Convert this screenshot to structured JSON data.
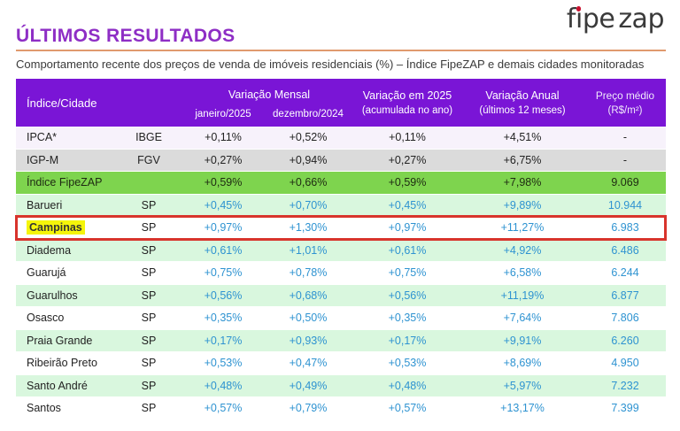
{
  "page": {
    "title": "ÚLTIMOS RESULTADOS",
    "subtitle": "Comportamento recente dos preços de venda de imóveis residenciais (%) – Índice FipeZAP e demais cidades monitoradas"
  },
  "logo": {
    "fi": "fı",
    "pe": "pe",
    "zap": "zap",
    "dot_color": "#C8102E"
  },
  "colors": {
    "title_purple": "#8E2EC5",
    "header_purple": "#7A15D6",
    "rule_orange": "#E09A6E",
    "index_row_green": "#7ED44E",
    "city_row_green": "#D9F7DE",
    "value_blue": "#2E93D1",
    "highlight_border_red": "#D8342C",
    "highlight_yellow": "#F5F50A",
    "row_lavender": "#F7F2FB",
    "row_gray": "#DBDBDB"
  },
  "chart_data": {
    "type": "table",
    "title": "ÚLTIMOS RESULTADOS",
    "header": {
      "index_city": "Índice/Cidade",
      "monthly_group": "Variação Mensal",
      "monthly_sub_1": "janeiro/2025",
      "monthly_sub_2": "dezembro/2024",
      "ytd_1": "Variação em 2025",
      "ytd_2": "(acumulada no ano)",
      "annual_1": "Variação Anual",
      "annual_2": "(últimos 12 meses)",
      "price_1": "Preço médio",
      "price_2": "(R$/m²)"
    },
    "rows": [
      {
        "name": "IPCA*",
        "source": "IBGE",
        "values": [
          "+0,11%",
          "+0,52%",
          "+0,11%",
          "+4,51%",
          "-"
        ],
        "style": "lavender",
        "name_highlight": false
      },
      {
        "name": "IGP-M",
        "source": "FGV",
        "values": [
          "+0,27%",
          "+0,94%",
          "+0,27%",
          "+6,75%",
          "-"
        ],
        "style": "gray",
        "name_highlight": false
      },
      {
        "name": "Índice FipeZAP",
        "source": "",
        "values": [
          "+0,59%",
          "+0,66%",
          "+0,59%",
          "+7,98%",
          "9.069"
        ],
        "style": "index",
        "name_highlight": false
      },
      {
        "name": "Barueri",
        "source": "SP",
        "values": [
          "+0,45%",
          "+0,70%",
          "+0,45%",
          "+9,89%",
          "10.944"
        ],
        "style": "green",
        "name_highlight": false
      },
      {
        "name": "Campinas",
        "source": "SP",
        "values": [
          "+0,97%",
          "+1,30%",
          "+0,97%",
          "+11,27%",
          "6.983"
        ],
        "style": "highlight",
        "name_highlight": true
      },
      {
        "name": "Diadema",
        "source": "SP",
        "values": [
          "+0,61%",
          "+1,01%",
          "+0,61%",
          "+4,92%",
          "6.486"
        ],
        "style": "green",
        "name_highlight": false
      },
      {
        "name": "Guarujá",
        "source": "SP",
        "values": [
          "+0,75%",
          "+0,78%",
          "+0,75%",
          "+6,58%",
          "6.244"
        ],
        "style": "white",
        "name_highlight": false
      },
      {
        "name": "Guarulhos",
        "source": "SP",
        "values": [
          "+0,56%",
          "+0,68%",
          "+0,56%",
          "+11,19%",
          "6.877"
        ],
        "style": "green",
        "name_highlight": false
      },
      {
        "name": "Osasco",
        "source": "SP",
        "values": [
          "+0,35%",
          "+0,50%",
          "+0,35%",
          "+7,64%",
          "7.806"
        ],
        "style": "white",
        "name_highlight": false
      },
      {
        "name": "Praia Grande",
        "source": "SP",
        "values": [
          "+0,17%",
          "+0,93%",
          "+0,17%",
          "+9,91%",
          "6.260"
        ],
        "style": "green",
        "name_highlight": false
      },
      {
        "name": "Ribeirão Preto",
        "source": "SP",
        "values": [
          "+0,53%",
          "+0,47%",
          "+0,53%",
          "+8,69%",
          "4.950"
        ],
        "style": "white",
        "name_highlight": false
      },
      {
        "name": "Santo André",
        "source": "SP",
        "values": [
          "+0,48%",
          "+0,49%",
          "+0,48%",
          "+5,97%",
          "7.232"
        ],
        "style": "green",
        "name_highlight": false
      },
      {
        "name": "Santos",
        "source": "SP",
        "values": [
          "+0,57%",
          "+0,79%",
          "+0,57%",
          "+13,17%",
          "7.399"
        ],
        "style": "white",
        "name_highlight": false
      }
    ]
  }
}
